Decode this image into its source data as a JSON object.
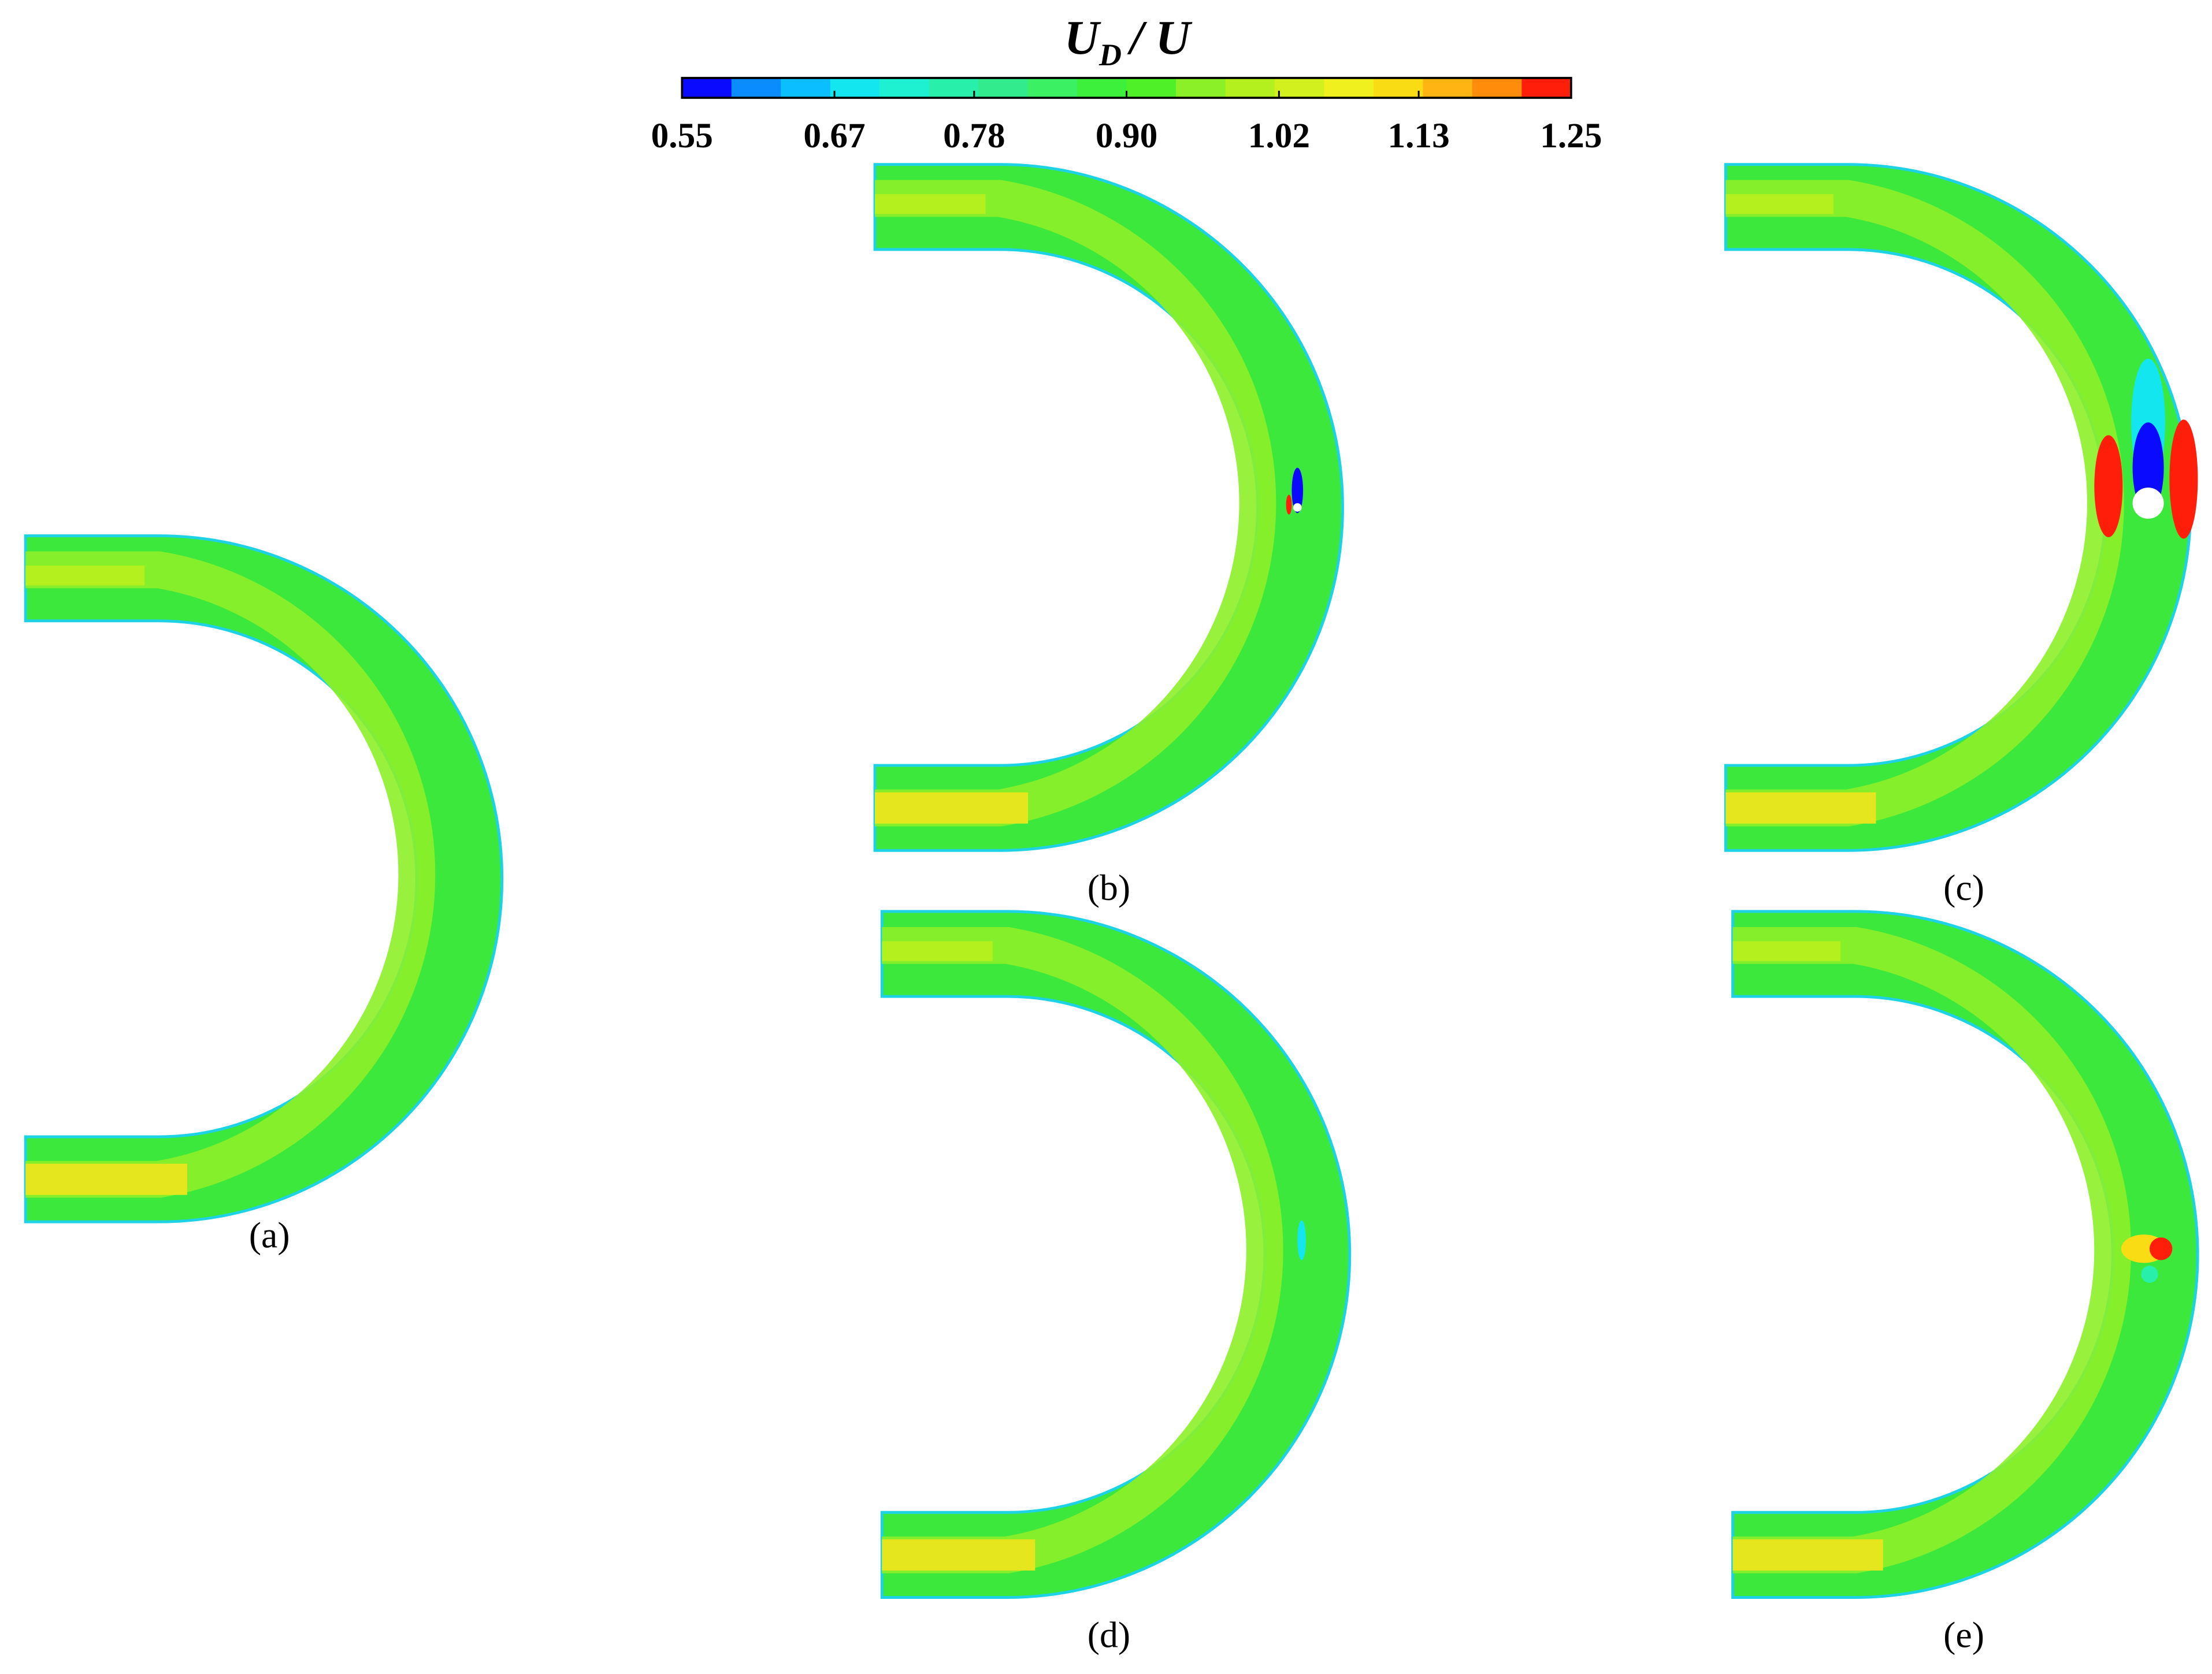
{
  "colorbar": {
    "title": [
      "U",
      "D",
      "/ U"
    ],
    "lim": [
      0.55,
      1.25
    ],
    "ticks": [
      0.55,
      0.67,
      0.78,
      {
        "value": 0.9,
        "label": "0.90"
      },
      1.02,
      1.13,
      1.25
    ],
    "colors": [
      "#0a0aff",
      "#0a8cff",
      "#0abeff",
      "#14e6f0",
      "#1ef0d2",
      "#28f0aa",
      "#32eb8c",
      "#3cf064",
      "#3cf03c",
      "#50f028",
      "#8cf028",
      "#b4f01e",
      "#d2f01e",
      "#f0f01e",
      "#fadc14",
      "#ffb414",
      "#ff8c0a",
      "#ff1e0a"
    ]
  },
  "panels": [
    {
      "label": "(a)"
    },
    {
      "label": "(b)"
    },
    {
      "label": "(c)"
    },
    {
      "label": "(d)"
    },
    {
      "label": "(e)"
    }
  ]
}
